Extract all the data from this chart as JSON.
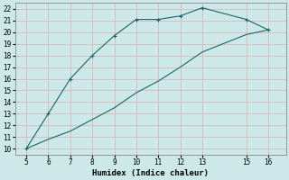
{
  "title": "",
  "xlabel": "Humidex (Indice chaleur)",
  "ylabel": "",
  "background_color": "#cce8e8",
  "grid_color": "#dbb8b8",
  "line_color": "#1a6666",
  "marker_color": "#1a6666",
  "xlim": [
    4.5,
    16.8
  ],
  "ylim": [
    9.5,
    22.5
  ],
  "xticks": [
    5,
    6,
    7,
    8,
    9,
    10,
    11,
    12,
    13,
    15,
    16
  ],
  "yticks": [
    10,
    11,
    12,
    13,
    14,
    15,
    16,
    17,
    18,
    19,
    20,
    21,
    22
  ],
  "line1_x": [
    5,
    6,
    7,
    8,
    9,
    10,
    11,
    12,
    13,
    15,
    16
  ],
  "line1_y": [
    10,
    13,
    16,
    18,
    19.7,
    21.1,
    21.1,
    21.4,
    22.1,
    21.1,
    20.2
  ],
  "line2_x": [
    5,
    6,
    7,
    8,
    9,
    10,
    11,
    12,
    13,
    15,
    16
  ],
  "line2_y": [
    10,
    10.8,
    11.5,
    12.5,
    13.5,
    14.8,
    15.8,
    17.0,
    18.3,
    19.8,
    20.2
  ]
}
